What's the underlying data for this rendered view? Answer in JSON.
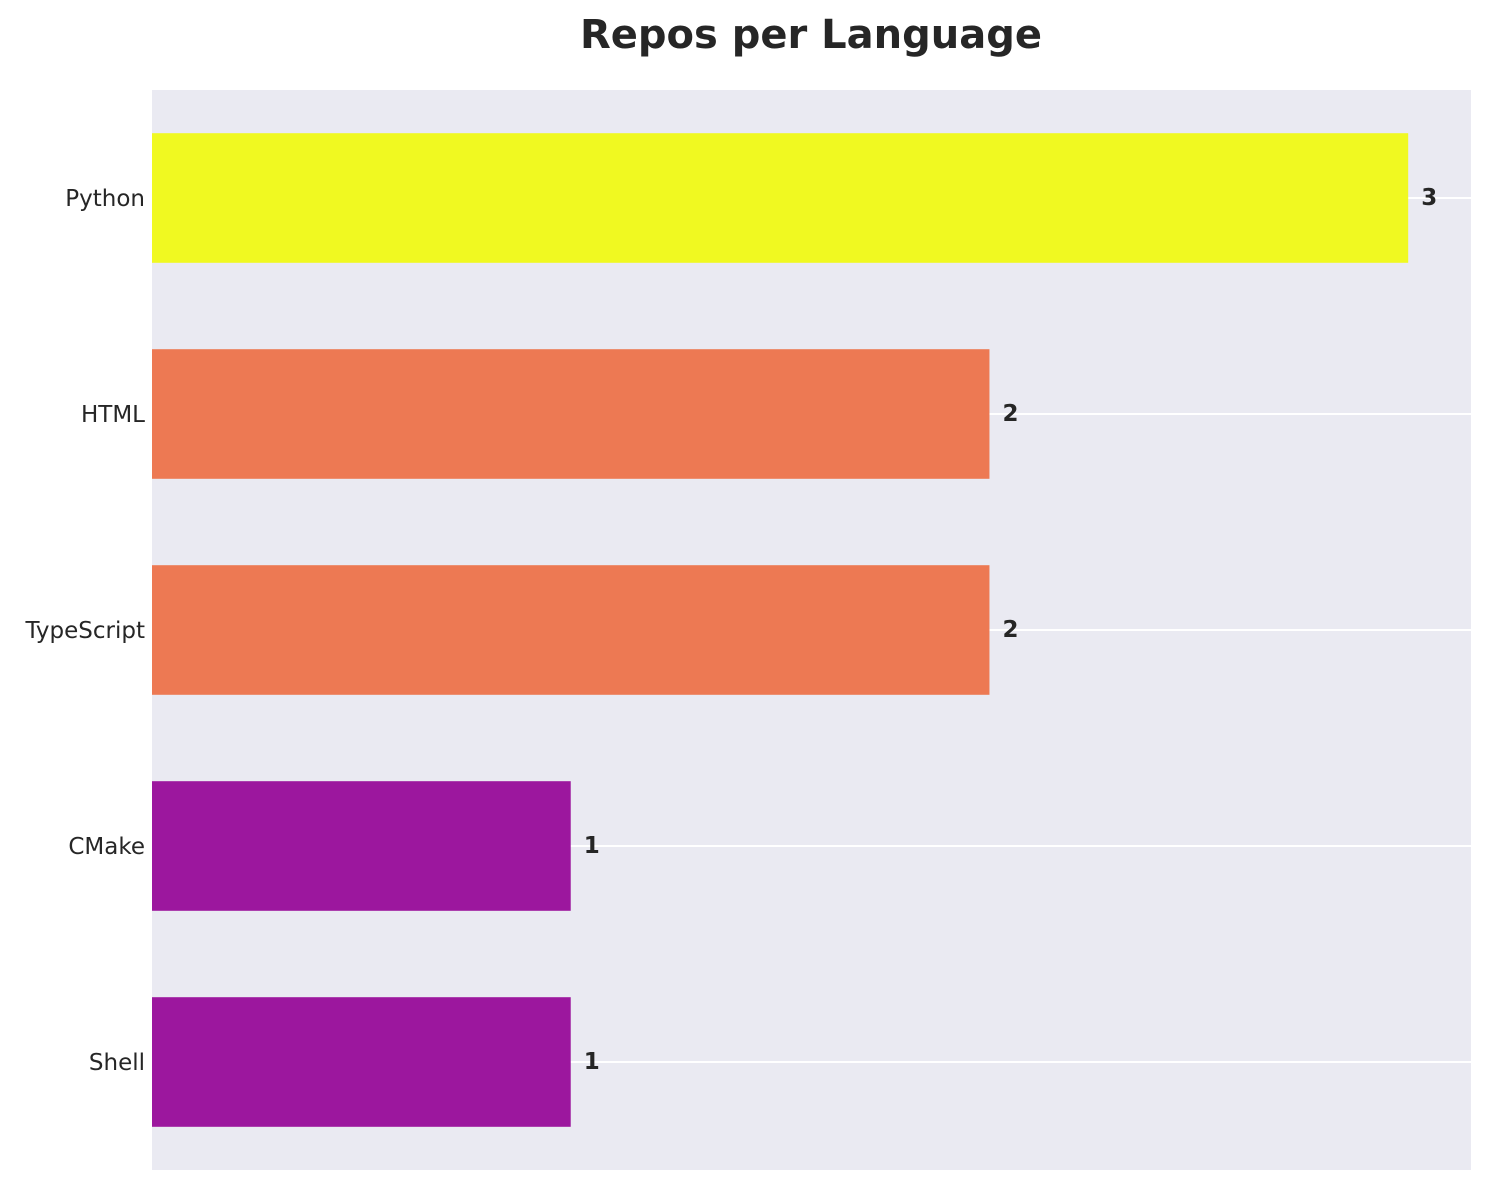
{
  "chart_data": {
    "type": "bar",
    "orientation": "horizontal",
    "title": "Repos per Language",
    "xlabel": "",
    "ylabel": "",
    "categories": [
      "Python",
      "HTML",
      "TypeScript",
      "CMake",
      "Shell"
    ],
    "values": [
      3,
      2,
      2,
      1,
      1
    ],
    "bar_colors": [
      "#f0f921",
      "#ed7953",
      "#ed7953",
      "#9c179e",
      "#9c179e"
    ],
    "xlim": [
      0,
      3.15
    ],
    "grid": true,
    "legend": "none",
    "colors": {
      "plot_background": "#eaeaf2",
      "gridline": "#ffffff",
      "text": "#262626"
    }
  }
}
